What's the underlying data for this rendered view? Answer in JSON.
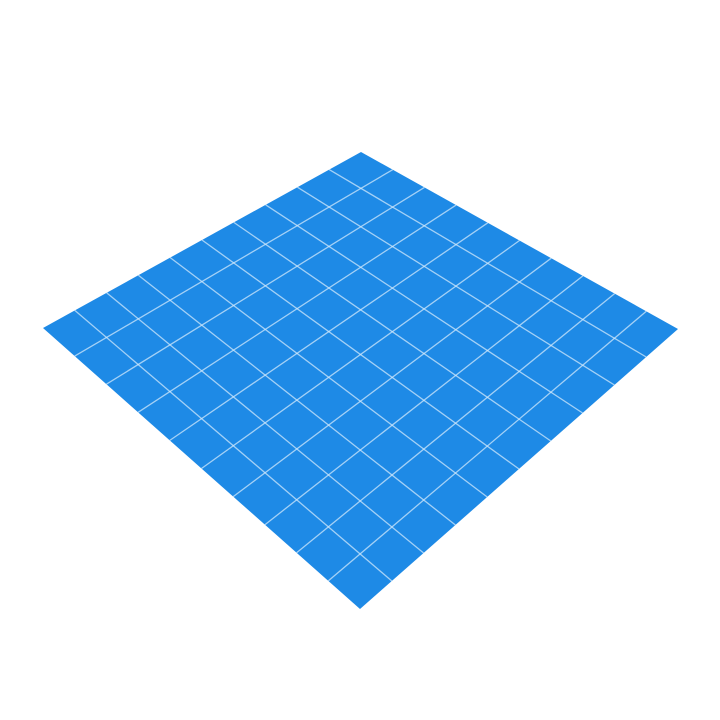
{
  "scene": {
    "background_color": "#ffffff",
    "object": "plane",
    "plane_color": "#1e8ae6",
    "grid_line_color": "#d2e8fb",
    "grid_divisions": 10
  }
}
